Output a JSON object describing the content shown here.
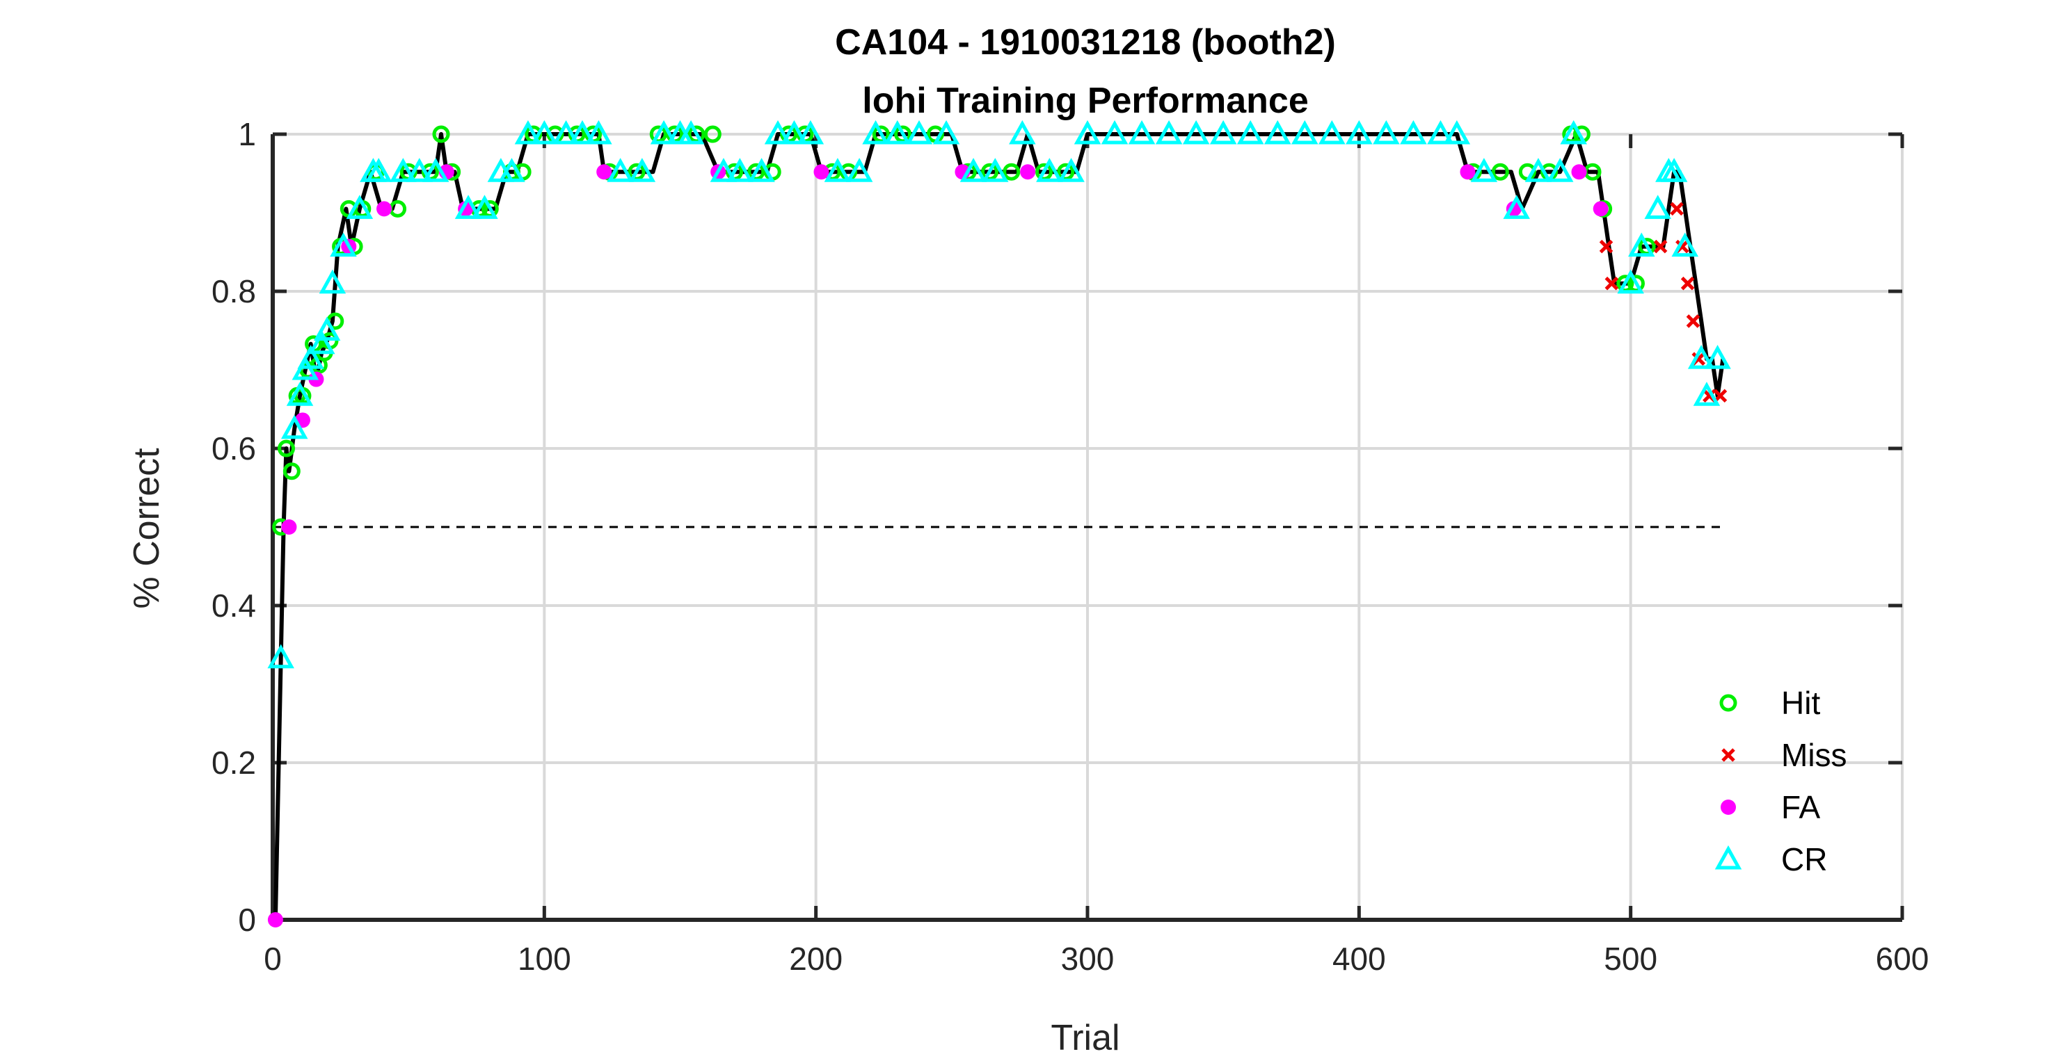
{
  "chart_data": {
    "type": "line",
    "title": "CA104 - 1910031218 (booth2)",
    "subtitle": "lohi Training Performance",
    "xlabel": "Trial",
    "ylabel": "% Correct",
    "xlim": [
      0,
      600
    ],
    "ylim": [
      0,
      1
    ],
    "xticks": [
      0,
      100,
      200,
      300,
      400,
      500,
      600
    ],
    "yticks": [
      0,
      0.2,
      0.4,
      0.6,
      0.8,
      1
    ],
    "xtick_labels": [
      "0",
      "100",
      "200",
      "300",
      "400",
      "500",
      "600"
    ],
    "ytick_labels": [
      "0",
      "0.2",
      "0.4",
      "0.6",
      "0.8",
      "1"
    ],
    "grid": true,
    "legend_position": "bottom-right",
    "chance_line": {
      "y": 0.5,
      "x_range": [
        0,
        533
      ],
      "style": "dashed"
    },
    "colors": {
      "line": "#000000",
      "hit": "#00ee00",
      "miss": "#ee0000",
      "fa": "#ff00ff",
      "cr": "#00ffff",
      "chance": "#000000"
    },
    "series": [
      {
        "name": "performance-line",
        "x": [
          1,
          3,
          4,
          5,
          6,
          8,
          10,
          12,
          14,
          16,
          18,
          20,
          22,
          24,
          27,
          29,
          32,
          36,
          40,
          44,
          48,
          52,
          56,
          60,
          62,
          64,
          67,
          70,
          74,
          78,
          82,
          86,
          90,
          94,
          100,
          110,
          120,
          122,
          126,
          130,
          135,
          140,
          144,
          150,
          158,
          164,
          168,
          175,
          182,
          186,
          192,
          198,
          202,
          208,
          214,
          218,
          222,
          230,
          240,
          250,
          254,
          260,
          268,
          274,
          278,
          282,
          288,
          296,
          300,
          320,
          360,
          400,
          436,
          440,
          450,
          456,
          460,
          466,
          474,
          480,
          484,
          488,
          490,
          492,
          494,
          496,
          500,
          504,
          508,
          512,
          514,
          516,
          518,
          520,
          522,
          524,
          526,
          528,
          530,
          532,
          534
        ],
        "y": [
          0,
          0.333,
          0.5,
          0.6,
          0.571,
          0.625,
          0.667,
          0.7,
          0.733,
          0.688,
          0.722,
          0.737,
          0.762,
          0.857,
          0.905,
          0.857,
          0.905,
          0.952,
          0.905,
          0.905,
          0.952,
          0.952,
          0.952,
          0.952,
          1.0,
          0.952,
          0.952,
          0.905,
          0.905,
          0.905,
          0.905,
          0.952,
          0.952,
          1.0,
          1.0,
          1.0,
          1.0,
          0.952,
          0.952,
          0.952,
          0.952,
          0.952,
          1.0,
          1.0,
          1.0,
          0.952,
          0.952,
          0.952,
          0.952,
          1.0,
          1.0,
          1.0,
          0.952,
          0.952,
          0.952,
          0.952,
          1.0,
          1.0,
          1.0,
          1.0,
          0.952,
          0.952,
          0.952,
          0.952,
          1.0,
          0.952,
          0.952,
          0.952,
          1.0,
          1.0,
          1.0,
          1.0,
          1.0,
          0.952,
          0.952,
          0.952,
          0.905,
          0.952,
          0.952,
          1.0,
          0.952,
          0.952,
          0.905,
          0.857,
          0.81,
          0.81,
          0.81,
          0.857,
          0.857,
          0.857,
          0.905,
          0.952,
          0.952,
          0.905,
          0.857,
          0.81,
          0.762,
          0.714,
          0.714,
          0.667,
          0.714
        ]
      },
      {
        "name": "Hit",
        "marker": "circle-open",
        "x": [
          3,
          5,
          7,
          9,
          11,
          13,
          15,
          17,
          19,
          21,
          23,
          25,
          28,
          30,
          33,
          38,
          46,
          50,
          58,
          62,
          66,
          76,
          80,
          88,
          92,
          96,
          104,
          112,
          118,
          124,
          134,
          142,
          148,
          156,
          162,
          170,
          178,
          184,
          190,
          196,
          206,
          212,
          224,
          232,
          244,
          256,
          264,
          272,
          284,
          292,
          442,
          452,
          462,
          470,
          478,
          482,
          486,
          490,
          498,
          502,
          506
        ],
        "y": [
          0.5,
          0.6,
          0.571,
          0.667,
          0.667,
          0.7,
          0.733,
          0.706,
          0.722,
          0.737,
          0.762,
          0.857,
          0.905,
          0.857,
          0.905,
          0.952,
          0.905,
          0.952,
          0.952,
          1.0,
          0.952,
          0.905,
          0.905,
          0.952,
          0.952,
          1.0,
          1.0,
          1.0,
          1.0,
          0.952,
          0.952,
          1.0,
          1.0,
          1.0,
          1.0,
          0.952,
          0.952,
          0.952,
          1.0,
          1.0,
          0.952,
          0.952,
          1.0,
          1.0,
          1.0,
          0.952,
          0.952,
          0.952,
          0.952,
          0.952,
          0.952,
          0.952,
          0.952,
          0.952,
          1.0,
          1.0,
          0.952,
          0.905,
          0.81,
          0.81,
          0.857
        ]
      },
      {
        "name": "Miss",
        "marker": "x",
        "x": [
          491,
          493,
          511,
          517,
          519,
          521,
          523,
          525,
          529,
          533
        ],
        "y": [
          0.857,
          0.81,
          0.857,
          0.905,
          0.857,
          0.81,
          0.762,
          0.714,
          0.667,
          0.667
        ]
      },
      {
        "name": "FA",
        "marker": "dot",
        "x": [
          1,
          6,
          11,
          16,
          28,
          41,
          64,
          71,
          122,
          164,
          202,
          254,
          278,
          440,
          457,
          481,
          489
        ],
        "y": [
          0,
          0.5,
          0.636,
          0.688,
          0.857,
          0.905,
          0.952,
          0.905,
          0.952,
          0.952,
          0.952,
          0.952,
          0.952,
          0.952,
          0.905,
          0.952,
          0.905
        ]
      },
      {
        "name": "CR",
        "marker": "triangle-open",
        "x": [
          3,
          8,
          10,
          12,
          14,
          18,
          20,
          22,
          26,
          32,
          37,
          39,
          48,
          54,
          60,
          72,
          78,
          84,
          88,
          94,
          100,
          108,
          114,
          120,
          128,
          136,
          144,
          150,
          154,
          166,
          172,
          180,
          186,
          192,
          198,
          208,
          216,
          222,
          230,
          238,
          248,
          258,
          266,
          276,
          286,
          294,
          300,
          310,
          320,
          330,
          340,
          350,
          360,
          370,
          380,
          390,
          400,
          410,
          420,
          430,
          436,
          446,
          458,
          466,
          474,
          479,
          500,
          504,
          510,
          514,
          516,
          520,
          526,
          528,
          532
        ],
        "y": [
          0.333,
          0.625,
          0.667,
          0.7,
          0.714,
          0.733,
          0.75,
          0.81,
          0.857,
          0.905,
          0.952,
          0.952,
          0.952,
          0.952,
          0.952,
          0.905,
          0.905,
          0.952,
          0.952,
          1.0,
          1.0,
          1.0,
          1.0,
          1.0,
          0.952,
          0.952,
          1.0,
          1.0,
          1.0,
          0.952,
          0.952,
          0.952,
          1.0,
          1.0,
          1.0,
          0.952,
          0.952,
          1.0,
          1.0,
          1.0,
          1.0,
          0.952,
          0.952,
          1.0,
          0.952,
          0.952,
          1.0,
          1.0,
          1.0,
          1.0,
          1.0,
          1.0,
          1.0,
          1.0,
          1.0,
          1.0,
          1.0,
          1.0,
          1.0,
          1.0,
          1.0,
          0.952,
          0.905,
          0.952,
          0.952,
          1.0,
          0.81,
          0.857,
          0.905,
          0.952,
          0.952,
          0.857,
          0.714,
          0.667,
          0.714
        ]
      }
    ],
    "legend": [
      {
        "label": "Hit",
        "marker": "circle-open"
      },
      {
        "label": "Miss",
        "marker": "x"
      },
      {
        "label": "FA",
        "marker": "dot"
      },
      {
        "label": "CR",
        "marker": "triangle-open"
      }
    ]
  }
}
